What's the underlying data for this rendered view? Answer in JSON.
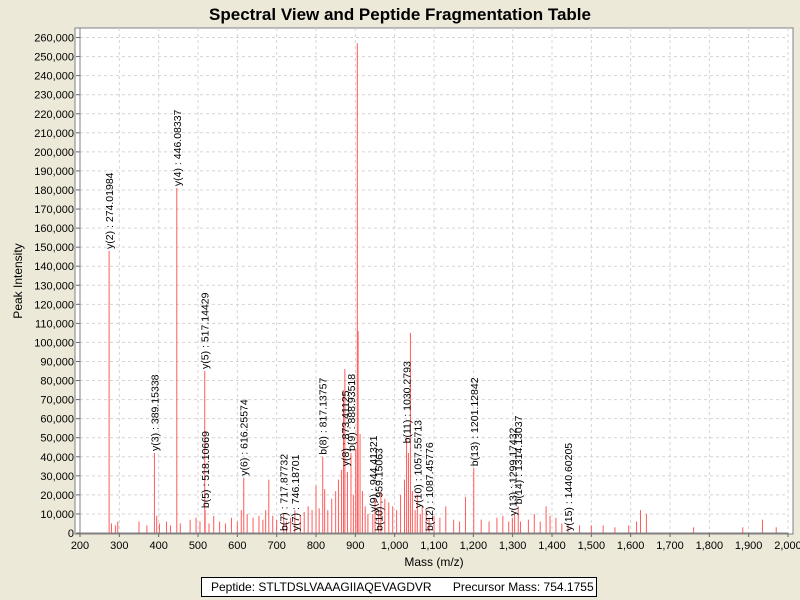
{
  "chart_data": {
    "type": "bar",
    "title": "Spectral View and Peptide Fragmentation Table",
    "xlabel": "Mass (m/z)",
    "ylabel": "Peak Intensity",
    "xlim": [
      200,
      2000
    ],
    "ylim": [
      0,
      265000
    ],
    "grid": true,
    "series_color": "#ff5a5a",
    "x_ticks": [
      200,
      300,
      400,
      500,
      600,
      700,
      800,
      900,
      1000,
      1100,
      1200,
      1300,
      1400,
      1500,
      1600,
      1700,
      1800,
      1900,
      2000
    ],
    "x_tick_labels": [
      "200",
      "300",
      "400",
      "500",
      "600",
      "700",
      "800",
      "900",
      "1,000",
      "1,100",
      "1,200",
      "1,300",
      "1,400",
      "1,500",
      "1,600",
      "1,700",
      "1,800",
      "1,900",
      "2,000"
    ],
    "y_ticks": [
      0,
      10000,
      20000,
      30000,
      40000,
      50000,
      60000,
      70000,
      80000,
      90000,
      100000,
      110000,
      120000,
      130000,
      140000,
      150000,
      160000,
      170000,
      180000,
      190000,
      200000,
      210000,
      220000,
      230000,
      240000,
      250000,
      260000
    ],
    "y_tick_labels": [
      "0",
      "10,000",
      "20,000",
      "30,000",
      "40,000",
      "50,000",
      "60,000",
      "70,000",
      "80,000",
      "90,000",
      "100,000",
      "110,000",
      "120,000",
      "130,000",
      "140,000",
      "150,000",
      "160,000",
      "170,000",
      "180,000",
      "190,000",
      "200,000",
      "210,000",
      "220,000",
      "230,000",
      "240,000",
      "250,000",
      "260,000"
    ],
    "peaks": [
      [
        274.0,
        148000
      ],
      [
        280,
        5000
      ],
      [
        290,
        4000
      ],
      [
        296,
        6000
      ],
      [
        350,
        6000
      ],
      [
        370,
        4000
      ],
      [
        389.2,
        42000
      ],
      [
        395,
        9000
      ],
      [
        402,
        5000
      ],
      [
        420,
        6000
      ],
      [
        430,
        4000
      ],
      [
        446.1,
        181000
      ],
      [
        455,
        5000
      ],
      [
        480,
        7000
      ],
      [
        495,
        8000
      ],
      [
        505,
        6000
      ],
      [
        517.1,
        85000
      ],
      [
        518.1,
        12000
      ],
      [
        528,
        5000
      ],
      [
        540,
        9000
      ],
      [
        555,
        6000
      ],
      [
        570,
        5000
      ],
      [
        585,
        8000
      ],
      [
        600,
        6000
      ],
      [
        610,
        12000
      ],
      [
        616.3,
        29000
      ],
      [
        625,
        10000
      ],
      [
        640,
        8000
      ],
      [
        655,
        9000
      ],
      [
        665,
        7000
      ],
      [
        672,
        12000
      ],
      [
        680,
        28000
      ],
      [
        690,
        9000
      ],
      [
        700,
        7000
      ],
      [
        717.9,
        10000
      ],
      [
        725,
        6000
      ],
      [
        735,
        8000
      ],
      [
        746.2,
        12000
      ],
      [
        760,
        9000
      ],
      [
        770,
        11000
      ],
      [
        780,
        14000
      ],
      [
        790,
        12000
      ],
      [
        800,
        25000
      ],
      [
        808,
        13000
      ],
      [
        817.1,
        40000
      ],
      [
        822,
        23000
      ],
      [
        830,
        12000
      ],
      [
        840,
        18000
      ],
      [
        850,
        22000
      ],
      [
        857,
        28000
      ],
      [
        865,
        33000
      ],
      [
        870,
        75000
      ],
      [
        873.4,
        86000
      ],
      [
        880,
        32000
      ],
      [
        888.9,
        42000
      ],
      [
        895,
        20000
      ],
      [
        901,
        44000
      ],
      [
        905,
        257000
      ],
      [
        907,
        106000
      ],
      [
        912,
        52000
      ],
      [
        918,
        22000
      ],
      [
        925,
        14000
      ],
      [
        932,
        10000
      ],
      [
        944.4,
        10000
      ],
      [
        950,
        18000
      ],
      [
        959.2,
        12000
      ],
      [
        965,
        22000
      ],
      [
        975,
        18000
      ],
      [
        985,
        16000
      ],
      [
        995,
        14000
      ],
      [
        1005,
        12000
      ],
      [
        1015,
        20000
      ],
      [
        1025,
        28000
      ],
      [
        1030.3,
        50000
      ],
      [
        1035,
        42000
      ],
      [
        1040,
        105000
      ],
      [
        1045,
        22000
      ],
      [
        1052,
        12000
      ],
      [
        1057.6,
        20000
      ],
      [
        1065,
        10000
      ],
      [
        1070,
        14000
      ],
      [
        1080,
        12000
      ],
      [
        1087.5,
        8000
      ],
      [
        1100,
        9000
      ],
      [
        1115,
        8000
      ],
      [
        1130,
        14000
      ],
      [
        1150,
        7000
      ],
      [
        1165,
        6000
      ],
      [
        1180,
        19000
      ],
      [
        1201.1,
        34000
      ],
      [
        1220,
        7000
      ],
      [
        1240,
        6000
      ],
      [
        1260,
        8000
      ],
      [
        1275,
        9000
      ],
      [
        1290,
        6000
      ],
      [
        1299.2,
        8000
      ],
      [
        1305,
        10000
      ],
      [
        1314.1,
        14000
      ],
      [
        1320,
        6000
      ],
      [
        1340,
        7000
      ],
      [
        1355,
        10000
      ],
      [
        1370,
        6000
      ],
      [
        1385,
        14000
      ],
      [
        1395,
        9000
      ],
      [
        1410,
        8000
      ],
      [
        1425,
        5000
      ],
      [
        1440.6,
        5000
      ],
      [
        1470,
        4000
      ],
      [
        1500,
        4000
      ],
      [
        1530,
        4000
      ],
      [
        1560,
        3000
      ],
      [
        1595,
        4000
      ],
      [
        1615,
        6000
      ],
      [
        1625,
        12000
      ],
      [
        1640,
        10000
      ],
      [
        1760,
        3000
      ],
      [
        1885,
        3000
      ],
      [
        1935,
        7000
      ],
      [
        1970,
        3000
      ]
    ],
    "annotations": [
      {
        "x": 274.0,
        "y": 148000,
        "text": "y(2) : 274.01984"
      },
      {
        "x": 389.2,
        "y": 42000,
        "text": "y(3) : 389.15338"
      },
      {
        "x": 446.1,
        "y": 181000,
        "text": "y(4) : 446.08337"
      },
      {
        "x": 517.1,
        "y": 85000,
        "text": "y(5) : 517.14429"
      },
      {
        "x": 518.1,
        "y": 12000,
        "text": "b(5) : 518.10669"
      },
      {
        "x": 616.3,
        "y": 29000,
        "text": "y(6) : 616.25574"
      },
      {
        "x": 717.9,
        "y": 0,
        "text": "b(7) : 717.87732"
      },
      {
        "x": 746.2,
        "y": 0,
        "text": "y(7) : 746.18701"
      },
      {
        "x": 817.1,
        "y": 40000,
        "text": "b(8) : 817.13757"
      },
      {
        "x": 873.4,
        "y": 34000,
        "text": "y(8) : 873.41125"
      },
      {
        "x": 888.9,
        "y": 42000,
        "text": "b(9) : 888.93518"
      },
      {
        "x": 944.4,
        "y": 10000,
        "text": "y(9) : 944.41321"
      },
      {
        "x": 959.2,
        "y": 0,
        "text": "b(10) : 959.15063"
      },
      {
        "x": 1030.3,
        "y": 46000,
        "text": "b(11) : 1030.2793"
      },
      {
        "x": 1057.6,
        "y": 12000,
        "text": "y(10) : 1057.55713"
      },
      {
        "x": 1087.5,
        "y": 0,
        "text": "b(12) : 1087.45776"
      },
      {
        "x": 1201.1,
        "y": 34000,
        "text": "b(13) : 1201.12842"
      },
      {
        "x": 1299.2,
        "y": 8000,
        "text": "y(13) : 1299.17432"
      },
      {
        "x": 1314.1,
        "y": 14000,
        "text": "b(14) : 1314.13037"
      },
      {
        "x": 1440.6,
        "y": 0,
        "text": "y(15) : 1440.60205"
      }
    ]
  },
  "footer": {
    "peptide": "Peptide: STLTDSLVAAAGIIAQEVAGDVR",
    "precursor": "Precursor Mass: 754.1755"
  }
}
